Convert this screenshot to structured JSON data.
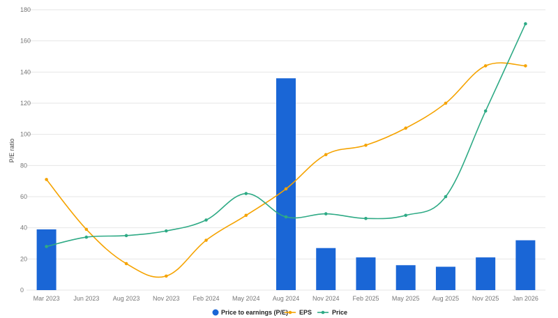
{
  "chart_data": {
    "type": "bar",
    "categories": [
      "Mar 2023",
      "Jun 2023",
      "Aug 2023",
      "Nov 2023",
      "Feb 2024",
      "May 2024",
      "Aug 2024",
      "Nov 2024",
      "Feb 2025",
      "May 2025",
      "Aug 2025",
      "Nov 2025",
      "Jan 2026"
    ],
    "ylabel": "P/E ratio",
    "ylim": [
      0,
      180
    ],
    "yticks": [
      0,
      20,
      40,
      60,
      80,
      100,
      120,
      140,
      160,
      180
    ],
    "grid": true,
    "legend_position": "bottom",
    "series": [
      {
        "name": "Price to earnings (P/E)",
        "type": "bar",
        "color": "#1a66d6",
        "values": [
          39,
          null,
          null,
          null,
          null,
          null,
          136,
          27,
          21,
          16,
          15,
          21,
          32
        ]
      },
      {
        "name": "EPS",
        "type": "line",
        "color": "#f5a300",
        "values": [
          71,
          39,
          17,
          9,
          32,
          48,
          65,
          87,
          93,
          104,
          120,
          144,
          144
        ]
      },
      {
        "name": "Price",
        "type": "line",
        "color": "#2eaa85",
        "values": [
          28,
          34,
          35,
          38,
          45,
          62,
          47,
          49,
          46,
          48,
          60,
          115,
          171
        ]
      }
    ]
  }
}
